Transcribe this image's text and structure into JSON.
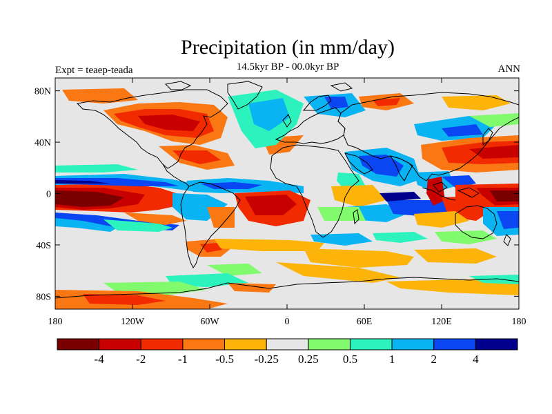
{
  "header": {
    "title": "Precipitation (in mm/day)",
    "subtitle": "14.5kyr BP - 00.0kyr BP",
    "left_label": "Expt = teaep-teada",
    "right_label": "ANN"
  },
  "map": {
    "projection": "cylindrical-equidistant",
    "lon_range": [
      -180,
      180
    ],
    "lat_range": [
      -90,
      90
    ],
    "background_color": "#e6e6e6",
    "coastline_color": "#000000",
    "lat_ticks": [
      {
        "value": 80,
        "label": "80N"
      },
      {
        "value": 40,
        "label": "40N"
      },
      {
        "value": 0,
        "label": "0"
      },
      {
        "value": -40,
        "label": "40S"
      },
      {
        "value": -80,
        "label": "80S"
      }
    ],
    "lon_ticks": [
      {
        "value": -180,
        "label": "180"
      },
      {
        "value": -120,
        "label": "120W"
      },
      {
        "value": -60,
        "label": "60W"
      },
      {
        "value": 0,
        "label": "0"
      },
      {
        "value": 60,
        "label": "60E"
      },
      {
        "value": 120,
        "label": "120E"
      },
      {
        "value": 180,
        "label": "180"
      }
    ]
  },
  "colorbar": {
    "colors": [
      "#7a0000",
      "#c80000",
      "#f22a00",
      "#fa7814",
      "#fdb40a",
      "#e6e6e6",
      "#82fa6e",
      "#2cf2be",
      "#0ab4f2",
      "#0a46f2",
      "#00008c"
    ],
    "labels": [
      "-4",
      "-2",
      "-1",
      "-0.5",
      "-0.25",
      "0.25",
      "0.5",
      "1",
      "2",
      "4"
    ]
  }
}
